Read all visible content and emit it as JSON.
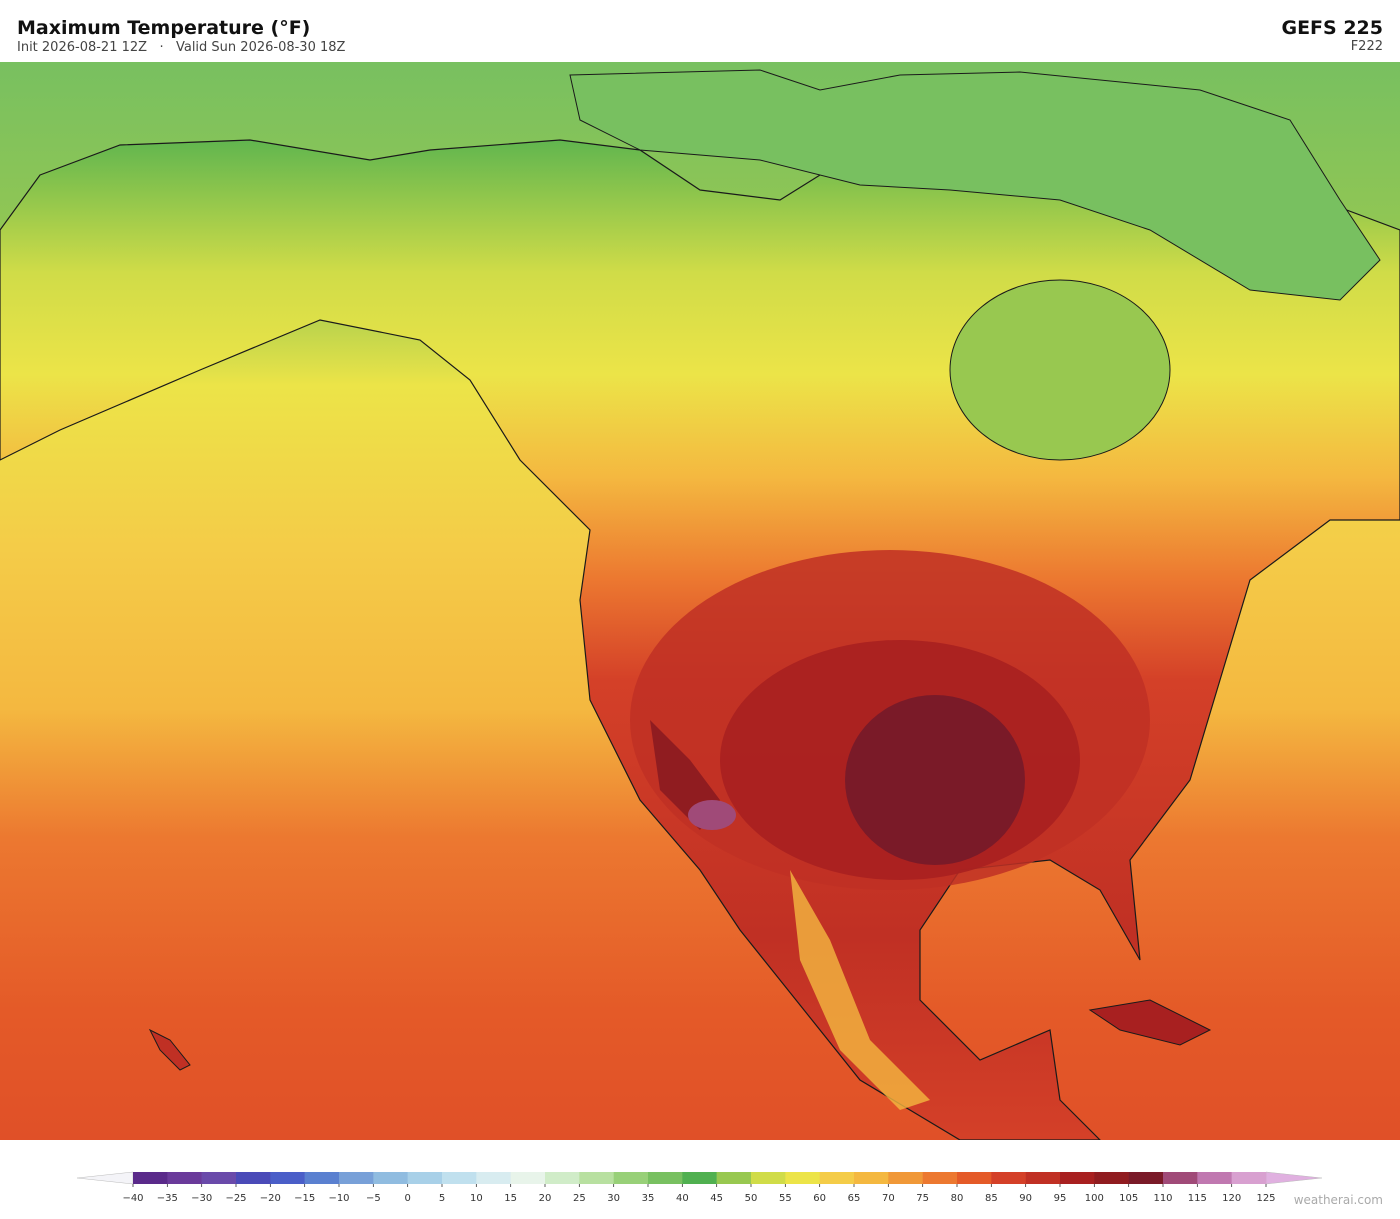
{
  "header": {
    "title": "Maximum Temperature  (°F)",
    "subtitle": "Init 2026-08-21 12Z   ·   Valid Sun 2026-08-30 18Z",
    "model": "GEFS  225",
    "forecast_hour": "F222"
  },
  "colorbar": {
    "ticks": [
      {
        "value": -40,
        "label": "−40"
      },
      {
        "value": -35,
        "label": "−35"
      },
      {
        "value": -30,
        "label": "−30"
      },
      {
        "value": -25,
        "label": "−25"
      },
      {
        "value": -20,
        "label": "−20"
      },
      {
        "value": -15,
        "label": "−15"
      },
      {
        "value": -10,
        "label": "−10"
      },
      {
        "value": -5,
        "label": "−5"
      },
      0,
      5,
      10,
      15,
      20,
      25,
      30,
      35,
      40,
      45,
      50,
      55,
      60,
      65,
      70,
      75,
      80,
      85,
      90,
      95,
      100,
      105,
      110,
      115,
      120,
      125
    ],
    "colors": [
      "#5a2a8a",
      "#6a3a9a",
      "#6a4aaa",
      "#4a4ab8",
      "#4a5ec8",
      "#5a80d0",
      "#78a0d8",
      "#90bce0",
      "#a8d0e8",
      "#c0e0ee",
      "#d8ecf0",
      "#e8f4ea",
      "#d0ecc8",
      "#b8e0a0",
      "#98d078",
      "#78c060",
      "#50b050",
      "#98c850",
      "#d0dc48",
      "#ece448",
      "#f4cc48",
      "#f4b840",
      "#f09838",
      "#ec7830",
      "#e45a28",
      "#d44028",
      "#c03024",
      "#a82020",
      "#901c20",
      "#7a1a28",
      "#a04a78",
      "#c078b0",
      "#d8a0d0"
    ],
    "under_color": "#f4f4f8",
    "over_color": "#e0b0e0"
  },
  "footer": {
    "credit": "weatherai.com"
  }
}
